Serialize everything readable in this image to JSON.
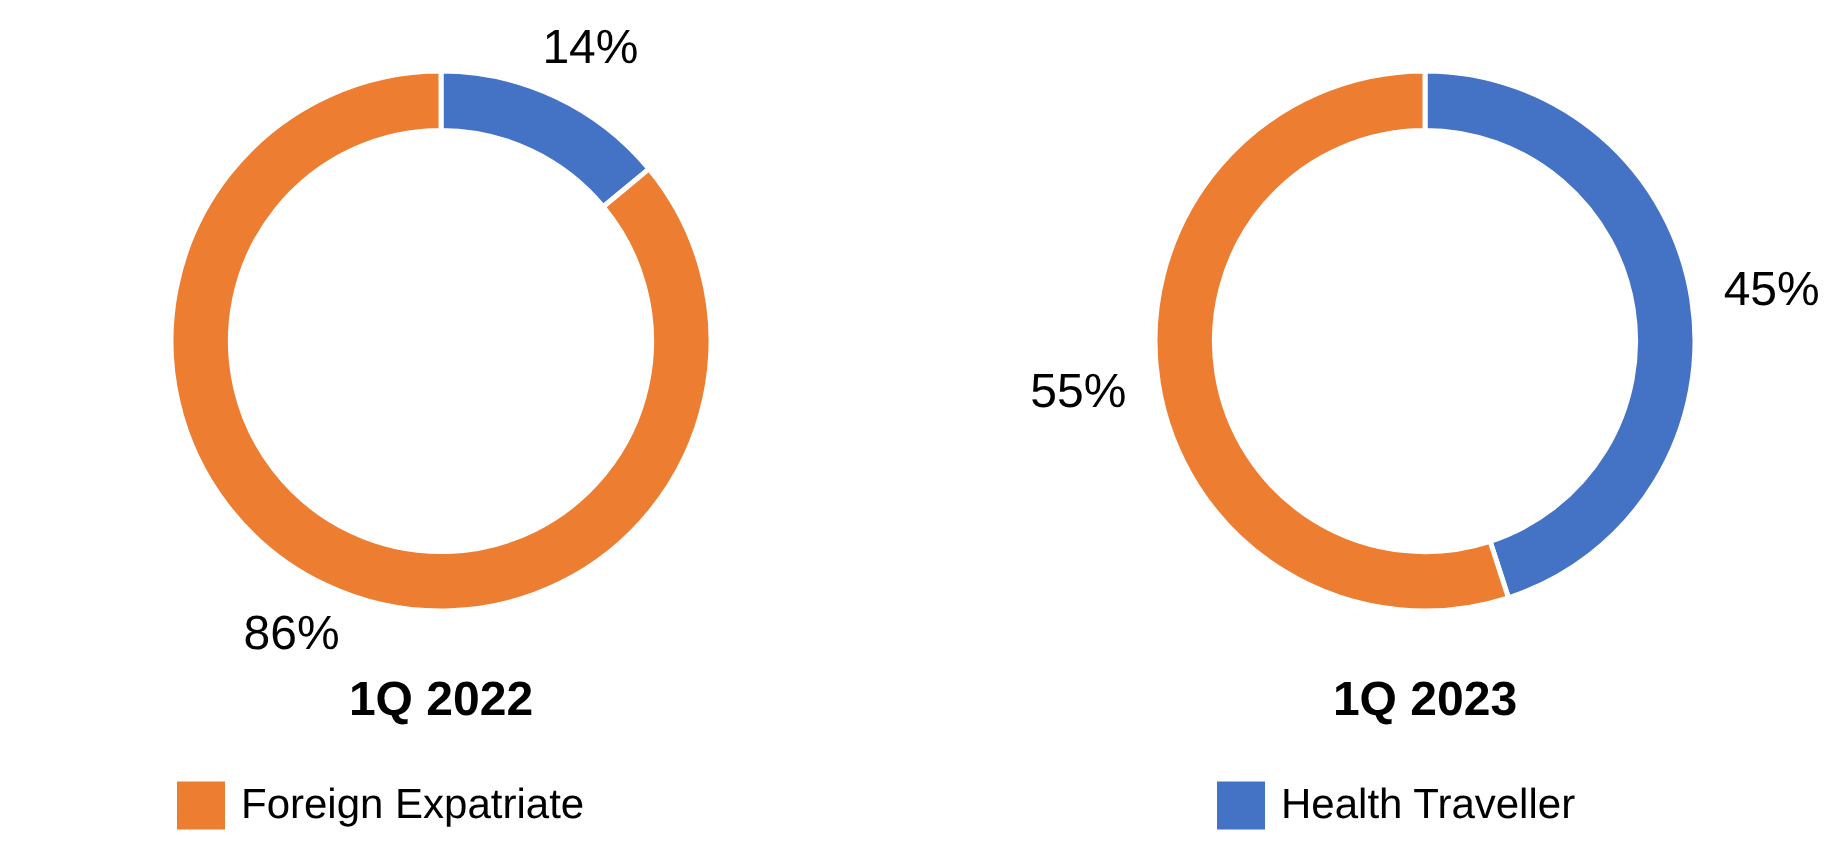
{
  "chart_data": [
    {
      "type": "donut",
      "title": "1Q 2022",
      "categories": [
        "Health Traveller",
        "Foreign Expatriate"
      ],
      "values": [
        14,
        86
      ],
      "colors": [
        "#4472c4",
        "#ed7d31"
      ],
      "value_labels": [
        "14%",
        "86%"
      ],
      "legend": "bottom"
    },
    {
      "type": "donut",
      "title": "1Q 2023",
      "categories": [
        null,
        null
      ],
      "values": [
        45,
        55
      ],
      "colors": [
        "#4472c4",
        "#ed7d31"
      ],
      "value_labels": [
        "45%",
        "55%"
      ]
    }
  ]
}
